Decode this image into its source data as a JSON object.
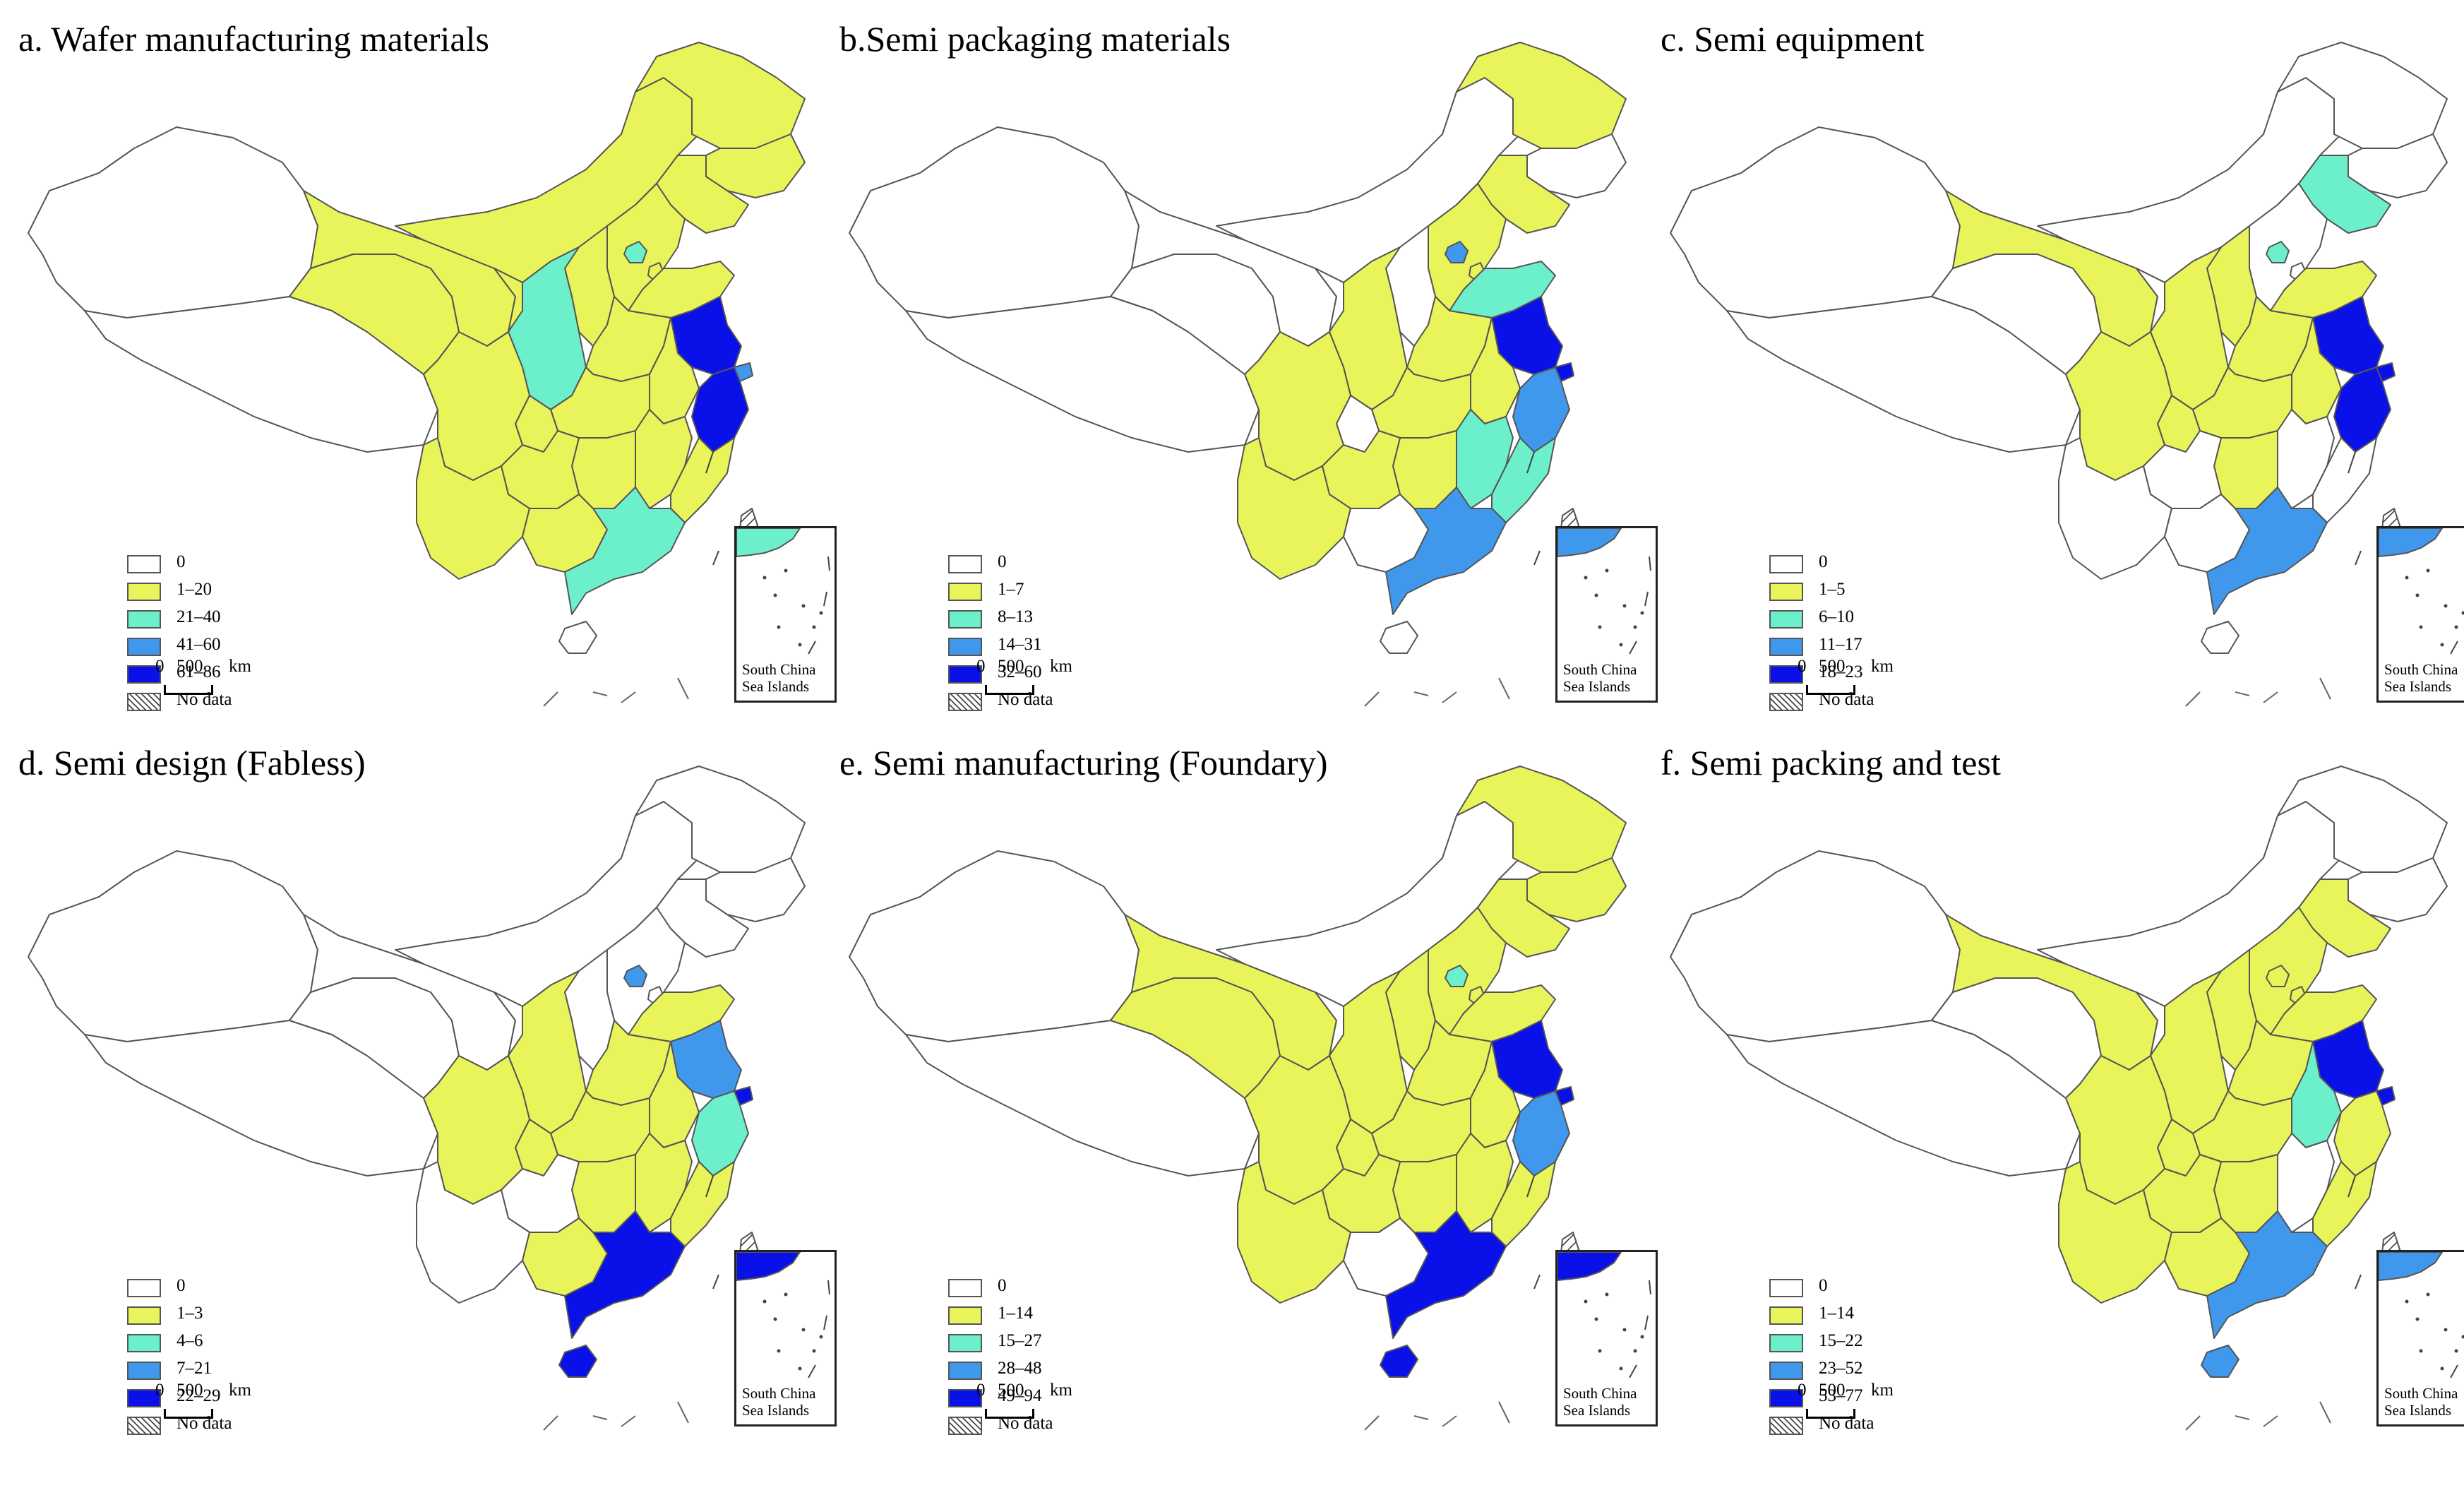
{
  "palette": {
    "zero": "#ffffff",
    "class1": "#e8f45a",
    "class2": "#6cf0cc",
    "class3": "#3f98ec",
    "class4": "#0a10e8",
    "no_data": "hatched",
    "outline": "#555555"
  },
  "icons": {
    "scale": "scale-bar",
    "inset": "south-china-sea-inset-map",
    "hatch": "diagonal-hatch-swatch"
  },
  "common": {
    "no_data_label": "No data",
    "scale_zero": "0",
    "scale_value": "500",
    "scale_unit": "km",
    "inset_label_line1": "South China",
    "inset_label_line2": "Sea Islands"
  },
  "panels": [
    {
      "title": "a. Wafer manufacturing materials",
      "legend": [
        "0",
        "1–20",
        "21–40",
        "41–60",
        "61–86"
      ],
      "regions": {
        "xinjiang": 0,
        "tibet": 0,
        "qinghai": 1,
        "gansu": 1,
        "inner_mongolia": 1,
        "heilongjiang": 1,
        "jilin": 1,
        "liaoning": 1,
        "beijing": 2,
        "tianjin": 1,
        "hebei": 1,
        "shanxi": 1,
        "shaanxi": 2,
        "ningxia": 1,
        "shandong": 1,
        "henan": 1,
        "jiangsu": 4,
        "shanghai": 3,
        "anhui": 1,
        "zhejiang": 4,
        "hubei": 1,
        "sichuan": 1,
        "chongqing": 1,
        "hunan": 1,
        "jiangxi": 1,
        "fujian": 1,
        "guizhou": 1,
        "yunnan": 1,
        "guangxi": 1,
        "guangdong": 2,
        "hainan": 0,
        "taiwan": "no_data",
        "inset": 2
      }
    },
    {
      "title": "b.Semi packaging materials",
      "legend": [
        "0",
        "1–7",
        "8–13",
        "14–31",
        "32–60"
      ],
      "regions": {
        "xinjiang": 0,
        "tibet": 0,
        "qinghai": 0,
        "gansu": 0,
        "inner_mongolia": 0,
        "heilongjiang": 1,
        "jilin": 0,
        "liaoning": 1,
        "beijing": 3,
        "tianjin": 1,
        "hebei": 1,
        "shanxi": 0,
        "shaanxi": 1,
        "ningxia": 0,
        "shandong": 2,
        "henan": 1,
        "jiangsu": 4,
        "shanghai": 4,
        "anhui": 1,
        "zhejiang": 3,
        "hubei": 1,
        "sichuan": 1,
        "chongqing": 0,
        "hunan": 1,
        "jiangxi": 2,
        "fujian": 2,
        "guizhou": 1,
        "yunnan": 1,
        "guangxi": 0,
        "guangdong": 3,
        "hainan": 0,
        "taiwan": "no_data",
        "inset": 3
      }
    },
    {
      "title": "c. Semi equipment",
      "legend": [
        "0",
        "1–5",
        "6–10",
        "11–17",
        "18–23"
      ],
      "regions": {
        "xinjiang": 0,
        "tibet": 0,
        "qinghai": 0,
        "gansu": 1,
        "inner_mongolia": 0,
        "heilongjiang": 0,
        "jilin": 0,
        "liaoning": 2,
        "beijing": 2,
        "tianjin": 0,
        "hebei": 0,
        "shanxi": 1,
        "shaanxi": 1,
        "ningxia": 0,
        "shandong": 1,
        "henan": 1,
        "jiangsu": 4,
        "shanghai": 4,
        "anhui": 1,
        "zhejiang": 4,
        "hubei": 1,
        "sichuan": 1,
        "chongqing": 1,
        "hunan": 1,
        "jiangxi": 0,
        "fujian": 0,
        "guizhou": 0,
        "yunnan": 0,
        "guangxi": 0,
        "guangdong": 3,
        "hainan": 0,
        "taiwan": "no_data",
        "inset": 3
      }
    },
    {
      "title": "d. Semi design (Fabless)",
      "legend": [
        "0",
        "1–3",
        "4–6",
        "7–21",
        "22–29"
      ],
      "regions": {
        "xinjiang": 0,
        "tibet": 0,
        "qinghai": 0,
        "gansu": 0,
        "inner_mongolia": 0,
        "heilongjiang": 0,
        "jilin": 0,
        "liaoning": 0,
        "beijing": 3,
        "tianjin": 0,
        "hebei": 0,
        "shanxi": 0,
        "shaanxi": 1,
        "ningxia": 0,
        "shandong": 1,
        "henan": 1,
        "jiangsu": 3,
        "shanghai": 4,
        "anhui": 1,
        "zhejiang": 2,
        "hubei": 1,
        "sichuan": 1,
        "chongqing": 1,
        "hunan": 1,
        "jiangxi": 1,
        "fujian": 1,
        "guizhou": 0,
        "yunnan": 0,
        "guangxi": 1,
        "guangdong": 4,
        "hainan": 4,
        "taiwan": "no_data",
        "inset": 4
      }
    },
    {
      "title": "e. Semi manufacturing (Foundary)",
      "legend": [
        "0",
        "1–14",
        "15–27",
        "28–48",
        "49–94"
      ],
      "regions": {
        "xinjiang": 0,
        "tibet": 0,
        "qinghai": 1,
        "gansu": 1,
        "inner_mongolia": 0,
        "heilongjiang": 1,
        "jilin": 1,
        "liaoning": 1,
        "beijing": 2,
        "tianjin": 1,
        "hebei": 1,
        "shanxi": 1,
        "shaanxi": 1,
        "ningxia": 0,
        "shandong": 1,
        "henan": 1,
        "jiangsu": 4,
        "shanghai": 4,
        "anhui": 1,
        "zhejiang": 3,
        "hubei": 1,
        "sichuan": 1,
        "chongqing": 1,
        "hunan": 1,
        "jiangxi": 1,
        "fujian": 1,
        "guizhou": 1,
        "yunnan": 1,
        "guangxi": 0,
        "guangdong": 4,
        "hainan": 4,
        "taiwan": "no_data",
        "inset": 4
      }
    },
    {
      "title": "f. Semi packing and test",
      "legend": [
        "0",
        "1–14",
        "15–22",
        "23–52",
        "53–77"
      ],
      "regions": {
        "xinjiang": 0,
        "tibet": 0,
        "qinghai": 0,
        "gansu": 1,
        "inner_mongolia": 0,
        "heilongjiang": 0,
        "jilin": 0,
        "liaoning": 1,
        "beijing": 1,
        "tianjin": 1,
        "hebei": 1,
        "shanxi": 1,
        "shaanxi": 1,
        "ningxia": 0,
        "shandong": 1,
        "henan": 1,
        "jiangsu": 4,
        "shanghai": 4,
        "anhui": 2,
        "zhejiang": 1,
        "hubei": 1,
        "sichuan": 1,
        "chongqing": 1,
        "hunan": 1,
        "jiangxi": 0,
        "fujian": 1,
        "guizhou": 1,
        "yunnan": 1,
        "guangxi": 1,
        "guangdong": 3,
        "hainan": 3,
        "taiwan": "no_data",
        "inset": 3
      }
    }
  ]
}
